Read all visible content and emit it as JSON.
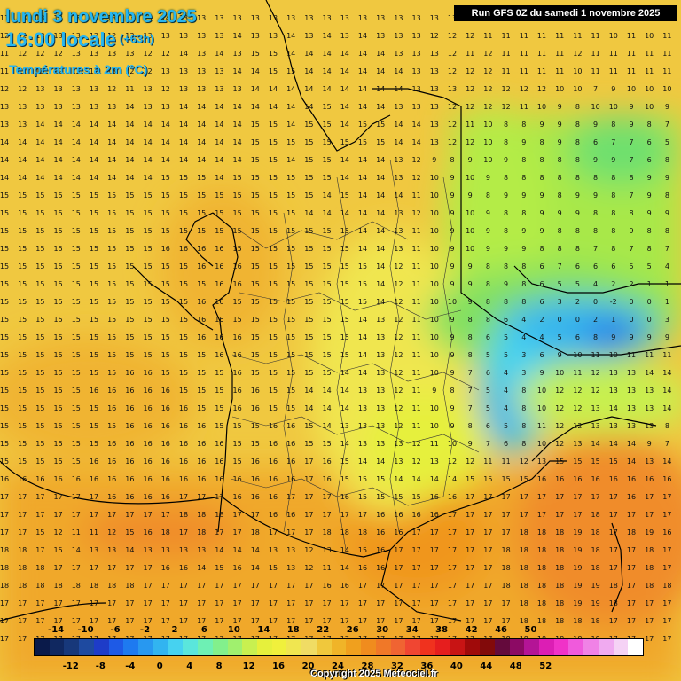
{
  "header": {
    "date_line": "lundi 3 novembre 2025",
    "time_line": "16:00 locale",
    "offset": "(+63h)",
    "variable": "Températures à 2m (°C)"
  },
  "run_label": "Run GFS 0Z du samedi 1 novembre 2025",
  "copyright": "Copyright 2025 Meteociel.fr",
  "legend": {
    "top_labels": [
      "-14",
      "-10",
      "-6",
      "-2",
      "2",
      "6",
      "10",
      "14",
      "18",
      "22",
      "26",
      "30",
      "34",
      "38",
      "42",
      "46",
      "50"
    ],
    "bottom_labels": [
      "-12",
      "-8",
      "-4",
      "0",
      "4",
      "8",
      "12",
      "16",
      "20",
      "24",
      "28",
      "32",
      "36",
      "40",
      "44",
      "48",
      "52"
    ],
    "colors": [
      "#0a1a4a",
      "#102860",
      "#17387a",
      "#1e4aa0",
      "#1e3cc8",
      "#1e5ae6",
      "#1e7af0",
      "#2898f0",
      "#32b4f0",
      "#46d2f0",
      "#5ae6dc",
      "#6ef0b4",
      "#82f08c",
      "#a0f06e",
      "#c8f050",
      "#e6f03c",
      "#f0f03c",
      "#f0e650",
      "#f0dc64",
      "#f0c83c",
      "#f0b428",
      "#f0a01e",
      "#f08c1e",
      "#f07828",
      "#f06432",
      "#f04632",
      "#f0321e",
      "#e61e1e",
      "#c81414",
      "#a00a0a",
      "#820a0a",
      "#640a3c",
      "#8c0a64",
      "#b41496",
      "#dc1eb4",
      "#f032c8",
      "#f05adc",
      "#f082e6",
      "#f0aaf0",
      "#f5d2f5",
      "#ffffff"
    ]
  },
  "grid_values": [
    "11 13 13 13 13 13 13 13 13 14 13 13 13 13 13 13 13 13 13 13 13 13 13 13 13 13 13 13 13 13 13 13 13 13 13 13 13 13",
    "12 12 13 13 13 12 12 13 13 13 13 13 13 14 13 13 14 13 14 13 14 13 13 13 12 12 12 11 11 11 11 11 11 11 10 11 10 11",
    "11 12 12 12 13 13 13 13 12 12 14 13 14 13 15 15 14 14 14 14 14 14 13 13 13 12 11 12 11 11 11 11 12 11 11 11 11 11",
    "11 12 13 12 12 12 13 12 12 13 13 13 13 14 14 15 15 14 14 14 14 14 14 13 13 12 12 12 11 11 11 11 10 11 11 11 11 11",
    "12 12 13 13 13 13 12 11 13 12 13 13 13 13 14 14 14 14 14 14 14 14 14 13 13 13 12 12 12 12 12 10 10 7 9 10 10 10",
    "13 13 13 13 13 13 13 14 13 13 14 14 14 14 14 14 14 14 15 14 14 14 13 13 13 12 12 12 12 11 10 9 8 10 10 9 10 9",
    "13 13 14 14 14 14 14 14 14 14 14 14 14 14 15 15 14 15 15 14 15 15 14 14 13 12 11 10 8 8 9 9 8 9 8 9 8 7",
    "14 14 14 14 14 14 14 14 14 14 14 14 14 14 15 15 15 15 15 15 15 15 14 14 13 12 12 10 8 9 8 9 8 6 7 7 6 5",
    "14 14 14 14 14 14 14 14 14 14 14 14 14 14 15 15 14 15 15 14 14 14 13 12 9 8 9 10 9 8 8 8 8 9 9 7 6 8",
    "14 14 14 14 14 14 14 14 14 15 15 15 14 15 15 15 15 15 15 14 14 14 13 12 10 9 10 9 8 8 8 8 8 8 8 8 9 9",
    "15 15 15 15 15 15 15 15 15 15 15 15 15 15 15 15 15 15 14 15 14 14 14 11 10 9 9 8 9 9 9 8 9 9 8 7 9 8",
    "15 15 15 15 15 15 15 15 15 15 15 15 15 15 15 15 15 14 14 14 14 14 13 12 10 9 10 9 8 8 9 9 9 8 8 8 9 9",
    "15 15 15 15 15 15 15 15 15 15 15 15 15 15 15 15 15 15 15 15 14 14 13 11 10 9 10 9 8 9 9 8 8 8 8 9 8 8",
    "15 15 15 15 15 15 15 15 15 16 16 16 16 15 15 15 15 15 15 15 14 14 13 11 10 9 10 9 9 9 8 8 8 7 8 7 8 7",
    "15 15 15 15 15 15 15 15 15 15 15 16 16 16 15 15 15 15 15 15 15 14 12 11 10 9 9 8 8 8 6 7 6 6 6 5 5 4",
    "15 15 15 15 15 15 15 15 15 15 15 15 16 16 15 15 15 15 15 15 15 14 12 11 10 9 9 8 9 8 6 5 5 4 2 2 1 1",
    "15 15 15 15 15 15 15 15 15 15 15 16 16 15 15 15 15 15 15 15 15 14 12 11 10 10 9 8 8 8 6 3 2 0 -2 0 0 1",
    "15 15 15 15 15 15 15 15 15 15 15 16 16 15 15 15 15 15 15 15 14 13 12 11 10 9 8 8 6 4 2 0 0 2 1 0 0 3",
    "15 15 15 15 15 15 15 15 15 15 15 16 16 16 15 15 15 15 15 15 14 13 12 11 10 9 8 6 5 4 4 5 6 8 9 9 9 9",
    "15 15 15 15 15 15 15 15 15 15 15 15 16 16 15 15 15 15 15 15 14 13 12 11 10 9 8 5 5 3 6 9 10 11 10 11 11 11",
    "15 15 15 15 15 15 15 16 16 15 15 15 15 16 15 15 15 15 15 14 14 13 12 11 10 9 7 6 4 3 9 10 11 12 13 13 14 14",
    "15 15 15 15 15 16 16 16 16 16 15 15 15 16 16 15 15 14 14 14 13 13 12 11 9 8 7 5 4 8 10 12 12 12 13 13 13 14",
    "15 15 15 15 15 15 16 16 16 16 16 15 15 16 16 15 15 14 14 14 13 13 12 11 10 9 7 5 4 8 10 12 12 13 14 13 13 14",
    "15 15 15 15 15 15 15 16 16 16 16 16 15 15 15 16 16 15 14 13 13 13 12 11 10 9 8 6 5 8 11 12 12 13 13 13 13 8",
    "15 15 15 15 15 15 16 16 16 16 16 16 16 15 15 16 16 15 15 14 13 13 13 12 11 10 9 7 6 8 10 12 13 14 14 14 9 7",
    "15 15 15 15 15 16 16 16 16 16 16 16 16 15 16 16 16 17 16 15 14 14 13 12 13 12 12 11 11 12 13 15 15 15 15 14 13 14",
    "16 16 16 16 16 16 16 16 16 16 16 16 16 16 16 16 16 17 16 15 15 15 14 14 14 14 15 15 15 15 16 16 16 16 16 16 16 16",
    "17 17 17 17 17 17 16 16 16 16 17 17 17 16 16 16 17 17 17 16 15 15 15 15 16 16 17 17 17 17 17 17 17 17 17 16 17 17",
    "17 17 17 17 17 17 17 17 17 17 18 18 18 17 17 16 16 17 17 17 17 16 16 16 16 17 17 17 17 17 17 17 17 18 17 17 17 17",
    "17 17 15 12 11 11 12 15 16 18 17 18 17 17 18 17 17 17 18 18 18 16 16 17 17 17 17 17 17 18 18 18 19 18 17 18 19 16",
    "18 18 17 15 14 13 13 14 13 13 13 13 14 14 14 13 13 12 13 14 15 16 17 17 17 17 17 17 18 18 18 18 19 18 17 17 18 17",
    "18 18 18 17 17 17 17 17 17 16 16 14 15 16 14 15 13 12 11 14 16 16 17 17 17 17 17 17 18 18 18 18 19 18 17 17 18 17",
    "18 18 18 18 18 18 18 18 17 17 17 17 17 17 17 17 17 17 16 16 17 17 17 17 17 17 17 17 18 18 18 18 19 19 18 17 18 18",
    "17 17 17 17 17 17 17 17 17 17 17 17 17 17 17 17 17 17 17 17 17 17 17 17 17 17 17 17 17 18 18 18 19 19 18 17 17 17",
    "17 17 17 17 17 17 17 17 17 17 17 17 17 17 17 17 17 17 17 17 17 17 17 17 17 17 17 17 17 18 18 18 18 18 17 17 17 17",
    "17 17 17 17 17 17 17 17 17 17 17 17 17 17 17 17 17 17 17 17 17 17 17 17 17 17 17 17 18 18 18 18 18 18 17 17 17 17",
    "17 17 17 17 17 17 17 17 17 17 17 17 17 17 17 17 17 17 17 17 17 17 17 17 17 17 17 17 17 17 17 17 17 17 17 17 17 17",
    "17 19 19 17 17 17 17 17 17 17 17 17 17 17 17 17 17 17 17 17 17 17 17 17 17 17 17 17 17 17 17 17 17 17 17 17 17 17"
  ]
}
